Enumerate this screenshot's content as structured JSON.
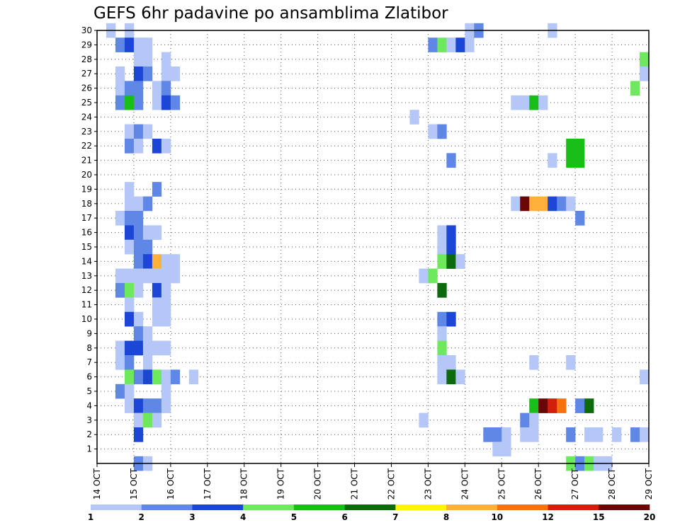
{
  "chart_data": {
    "type": "heatmap",
    "title": "GEFS 6hr padavine po ansamblima Zlatibor",
    "xlabel": "",
    "ylabel": "",
    "x_ticks": [
      "14 OCT",
      "15 OCT",
      "16 OCT",
      "17 OCT",
      "18 OCT",
      "19 OCT",
      "20 OCT",
      "21 OCT",
      "22 OCT",
      "23 OCT",
      "24 OCT",
      "25 OCT",
      "26 OCT",
      "27 OCT",
      "28 OCT",
      "29 OCT"
    ],
    "xlim_days": [
      0,
      15
    ],
    "y_ticks": [
      1,
      2,
      3,
      4,
      5,
      6,
      7,
      8,
      9,
      10,
      11,
      12,
      13,
      14,
      15,
      16,
      17,
      18,
      19,
      20,
      21,
      22,
      23,
      24,
      25,
      26,
      27,
      28,
      29,
      30
    ],
    "ylim": [
      0,
      30
    ],
    "grid": true,
    "legend": {
      "placement": "bottom",
      "labels": [
        "1",
        "2",
        "3",
        "4",
        "5",
        "6",
        "7",
        "8",
        "10",
        "12",
        "15",
        "20"
      ],
      "colors": [
        "#b4c7f7",
        "#5f87e6",
        "#1b46d6",
        "#6ee85c",
        "#19be19",
        "#0d6a0d",
        "#fff600",
        "#ffb03a",
        "#f5720f",
        "#d21f0b",
        "#6b0606"
      ]
    },
    "cells": [
      {
        "step": 1,
        "member": 30,
        "level": 1
      },
      {
        "step": 3,
        "member": 30,
        "level": 1
      },
      {
        "step": 2,
        "member": 29,
        "level": 2
      },
      {
        "step": 3,
        "member": 29,
        "level": 3
      },
      {
        "step": 4,
        "member": 29,
        "level": 1
      },
      {
        "step": 5,
        "member": 29,
        "level": 1
      },
      {
        "step": 4,
        "member": 28,
        "level": 1
      },
      {
        "step": 5,
        "member": 28,
        "level": 1
      },
      {
        "step": 7,
        "member": 28,
        "level": 1
      },
      {
        "step": 2,
        "member": 27,
        "level": 1
      },
      {
        "step": 4,
        "member": 27,
        "level": 3
      },
      {
        "step": 5,
        "member": 27,
        "level": 2
      },
      {
        "step": 7,
        "member": 27,
        "level": 1
      },
      {
        "step": 8,
        "member": 27,
        "level": 1
      },
      {
        "step": 2,
        "member": 26,
        "level": 1
      },
      {
        "step": 3,
        "member": 26,
        "level": 2
      },
      {
        "step": 4,
        "member": 26,
        "level": 2
      },
      {
        "step": 6,
        "member": 26,
        "level": 1
      },
      {
        "step": 7,
        "member": 26,
        "level": 2
      },
      {
        "step": 2,
        "member": 25,
        "level": 2
      },
      {
        "step": 3,
        "member": 25,
        "level": 5
      },
      {
        "step": 4,
        "member": 25,
        "level": 2
      },
      {
        "step": 6,
        "member": 25,
        "level": 1
      },
      {
        "step": 7,
        "member": 25,
        "level": 3
      },
      {
        "step": 8,
        "member": 25,
        "level": 2
      },
      {
        "step": 3,
        "member": 23,
        "level": 1
      },
      {
        "step": 4,
        "member": 23,
        "level": 2
      },
      {
        "step": 5,
        "member": 23,
        "level": 1
      },
      {
        "step": 3,
        "member": 22,
        "level": 2
      },
      {
        "step": 4,
        "member": 22,
        "level": 1
      },
      {
        "step": 6,
        "member": 22,
        "level": 3
      },
      {
        "step": 7,
        "member": 22,
        "level": 1
      },
      {
        "step": 3,
        "member": 19,
        "level": 1
      },
      {
        "step": 6,
        "member": 19,
        "level": 2
      },
      {
        "step": 3,
        "member": 18,
        "level": 1
      },
      {
        "step": 4,
        "member": 18,
        "level": 1
      },
      {
        "step": 5,
        "member": 18,
        "level": 2
      },
      {
        "step": 2,
        "member": 17,
        "level": 1
      },
      {
        "step": 3,
        "member": 17,
        "level": 2
      },
      {
        "step": 4,
        "member": 17,
        "level": 2
      },
      {
        "step": 3,
        "member": 16,
        "level": 3
      },
      {
        "step": 4,
        "member": 16,
        "level": 2
      },
      {
        "step": 5,
        "member": 16,
        "level": 1
      },
      {
        "step": 6,
        "member": 16,
        "level": 1
      },
      {
        "step": 3,
        "member": 15,
        "level": 1
      },
      {
        "step": 4,
        "member": 15,
        "level": 2
      },
      {
        "step": 5,
        "member": 15,
        "level": 2
      },
      {
        "step": 4,
        "member": 14,
        "level": 2
      },
      {
        "step": 5,
        "member": 14,
        "level": 3
      },
      {
        "step": 6,
        "member": 14,
        "level": 8
      },
      {
        "step": 7,
        "member": 14,
        "level": 1
      },
      {
        "step": 8,
        "member": 14,
        "level": 1
      },
      {
        "step": 2,
        "member": 13,
        "level": 1
      },
      {
        "step": 3,
        "member": 13,
        "level": 1
      },
      {
        "step": 4,
        "member": 13,
        "level": 1
      },
      {
        "step": 5,
        "member": 13,
        "level": 1
      },
      {
        "step": 6,
        "member": 13,
        "level": 1
      },
      {
        "step": 7,
        "member": 13,
        "level": 1
      },
      {
        "step": 8,
        "member": 13,
        "level": 1
      },
      {
        "step": 2,
        "member": 12,
        "level": 2
      },
      {
        "step": 3,
        "member": 12,
        "level": 4
      },
      {
        "step": 4,
        "member": 12,
        "level": 1
      },
      {
        "step": 6,
        "member": 12,
        "level": 3
      },
      {
        "step": 7,
        "member": 12,
        "level": 1
      },
      {
        "step": 3,
        "member": 11,
        "level": 1
      },
      {
        "step": 6,
        "member": 11,
        "level": 1
      },
      {
        "step": 7,
        "member": 11,
        "level": 1
      },
      {
        "step": 3,
        "member": 10,
        "level": 3
      },
      {
        "step": 4,
        "member": 10,
        "level": 1
      },
      {
        "step": 6,
        "member": 10,
        "level": 1
      },
      {
        "step": 7,
        "member": 10,
        "level": 1
      },
      {
        "step": 4,
        "member": 9,
        "level": 2
      },
      {
        "step": 5,
        "member": 9,
        "level": 1
      },
      {
        "step": 2,
        "member": 8,
        "level": 1
      },
      {
        "step": 3,
        "member": 8,
        "level": 3
      },
      {
        "step": 4,
        "member": 8,
        "level": 3
      },
      {
        "step": 5,
        "member": 8,
        "level": 1
      },
      {
        "step": 6,
        "member": 8,
        "level": 1
      },
      {
        "step": 7,
        "member": 8,
        "level": 1
      },
      {
        "step": 2,
        "member": 7,
        "level": 1
      },
      {
        "step": 3,
        "member": 7,
        "level": 2
      },
      {
        "step": 5,
        "member": 7,
        "level": 1
      },
      {
        "step": 3,
        "member": 6,
        "level": 4
      },
      {
        "step": 4,
        "member": 6,
        "level": 2
      },
      {
        "step": 5,
        "member": 6,
        "level": 3
      },
      {
        "step": 6,
        "member": 6,
        "level": 4
      },
      {
        "step": 7,
        "member": 6,
        "level": 1
      },
      {
        "step": 8,
        "member": 6,
        "level": 2
      },
      {
        "step": 10,
        "member": 6,
        "level": 1
      },
      {
        "step": 2,
        "member": 5,
        "level": 2
      },
      {
        "step": 3,
        "member": 5,
        "level": 1
      },
      {
        "step": 7,
        "member": 5,
        "level": 1
      },
      {
        "step": 3,
        "member": 4,
        "level": 1
      },
      {
        "step": 4,
        "member": 4,
        "level": 3
      },
      {
        "step": 5,
        "member": 4,
        "level": 2
      },
      {
        "step": 6,
        "member": 4,
        "level": 2
      },
      {
        "step": 7,
        "member": 4,
        "level": 1
      },
      {
        "step": 4,
        "member": 3,
        "level": 1
      },
      {
        "step": 5,
        "member": 3,
        "level": 4
      },
      {
        "step": 6,
        "member": 3,
        "level": 1
      },
      {
        "step": 4,
        "member": 2,
        "level": 3
      },
      {
        "step": 4,
        "member": 0,
        "level": 2
      },
      {
        "step": 5,
        "member": 0,
        "level": 1
      },
      {
        "step": 36,
        "member": 29,
        "level": 2
      },
      {
        "step": 37,
        "member": 29,
        "level": 4
      },
      {
        "step": 38,
        "member": 29,
        "level": 1
      },
      {
        "step": 39,
        "member": 29,
        "level": 3
      },
      {
        "step": 40,
        "member": 29,
        "level": 1
      },
      {
        "step": 40,
        "member": 30,
        "level": 1
      },
      {
        "step": 41,
        "member": 30,
        "level": 2
      },
      {
        "step": 34,
        "member": 24,
        "level": 1
      },
      {
        "step": 36,
        "member": 23,
        "level": 1
      },
      {
        "step": 37,
        "member": 23,
        "level": 2
      },
      {
        "step": 38,
        "member": 21,
        "level": 2
      },
      {
        "step": 37,
        "member": 16,
        "level": 1
      },
      {
        "step": 38,
        "member": 16,
        "level": 3
      },
      {
        "step": 37,
        "member": 15,
        "level": 1
      },
      {
        "step": 38,
        "member": 15,
        "level": 3
      },
      {
        "step": 37,
        "member": 14,
        "level": 4
      },
      {
        "step": 38,
        "member": 14,
        "level": 6
      },
      {
        "step": 39,
        "member": 14,
        "level": 1
      },
      {
        "step": 35,
        "member": 13,
        "level": 1
      },
      {
        "step": 36,
        "member": 13,
        "level": 4
      },
      {
        "step": 37,
        "member": 12,
        "level": 6
      },
      {
        "step": 37,
        "member": 10,
        "level": 2
      },
      {
        "step": 38,
        "member": 10,
        "level": 3
      },
      {
        "step": 37,
        "member": 9,
        "level": 1
      },
      {
        "step": 37,
        "member": 8,
        "level": 4
      },
      {
        "step": 37,
        "member": 7,
        "level": 1
      },
      {
        "step": 38,
        "member": 7,
        "level": 1
      },
      {
        "step": 37,
        "member": 6,
        "level": 1
      },
      {
        "step": 38,
        "member": 6,
        "level": 6
      },
      {
        "step": 39,
        "member": 6,
        "level": 1
      },
      {
        "step": 35,
        "member": 3,
        "level": 1
      },
      {
        "step": 42,
        "member": 2,
        "level": 2
      },
      {
        "step": 43,
        "member": 2,
        "level": 2
      },
      {
        "step": 44,
        "member": 2,
        "level": 1
      },
      {
        "step": 43,
        "member": 1,
        "level": 1
      },
      {
        "step": 44,
        "member": 1,
        "level": 1
      },
      {
        "step": 45,
        "member": 25,
        "level": 1
      },
      {
        "step": 46,
        "member": 25,
        "level": 1
      },
      {
        "step": 47,
        "member": 25,
        "level": 5
      },
      {
        "step": 48,
        "member": 25,
        "level": 1
      },
      {
        "step": 49,
        "member": 30,
        "level": 1
      },
      {
        "step": 49,
        "member": 21,
        "level": 1
      },
      {
        "step": 51,
        "member": 22,
        "level": 5
      },
      {
        "step": 52,
        "member": 22,
        "level": 5
      },
      {
        "step": 51,
        "member": 21,
        "level": 5
      },
      {
        "step": 52,
        "member": 21,
        "level": 5
      },
      {
        "step": 45,
        "member": 18,
        "level": 1
      },
      {
        "step": 46,
        "member": 18,
        "level": 11
      },
      {
        "step": 47,
        "member": 18,
        "level": 8
      },
      {
        "step": 48,
        "member": 18,
        "level": 8
      },
      {
        "step": 49,
        "member": 18,
        "level": 3
      },
      {
        "step": 50,
        "member": 18,
        "level": 2
      },
      {
        "step": 51,
        "member": 18,
        "level": 1
      },
      {
        "step": 52,
        "member": 17,
        "level": 2
      },
      {
        "step": 47,
        "member": 7,
        "level": 1
      },
      {
        "step": 51,
        "member": 7,
        "level": 1
      },
      {
        "step": 47,
        "member": 4,
        "level": 5
      },
      {
        "step": 48,
        "member": 4,
        "level": 11
      },
      {
        "step": 49,
        "member": 4,
        "level": 10
      },
      {
        "step": 50,
        "member": 4,
        "level": 9
      },
      {
        "step": 52,
        "member": 4,
        "level": 2
      },
      {
        "step": 53,
        "member": 4,
        "level": 6
      },
      {
        "step": 46,
        "member": 3,
        "level": 2
      },
      {
        "step": 47,
        "member": 3,
        "level": 1
      },
      {
        "step": 46,
        "member": 2,
        "level": 1
      },
      {
        "step": 47,
        "member": 2,
        "level": 1
      },
      {
        "step": 51,
        "member": 2,
        "level": 2
      },
      {
        "step": 53,
        "member": 2,
        "level": 1
      },
      {
        "step": 54,
        "member": 2,
        "level": 1
      },
      {
        "step": 56,
        "member": 2,
        "level": 1
      },
      {
        "step": 58,
        "member": 2,
        "level": 2
      },
      {
        "step": 59,
        "member": 2,
        "level": 1
      },
      {
        "step": 51,
        "member": 0,
        "level": 4
      },
      {
        "step": 52,
        "member": 0,
        "level": 2
      },
      {
        "step": 53,
        "member": 0,
        "level": 4
      },
      {
        "step": 54,
        "member": 0,
        "level": 1
      },
      {
        "step": 55,
        "member": 0,
        "level": 1
      },
      {
        "step": 59,
        "member": 28,
        "level": 4
      },
      {
        "step": 59,
        "member": 27,
        "level": 1
      },
      {
        "step": 58,
        "member": 26,
        "level": 4
      },
      {
        "step": 59,
        "member": 6,
        "level": 1
      }
    ]
  }
}
